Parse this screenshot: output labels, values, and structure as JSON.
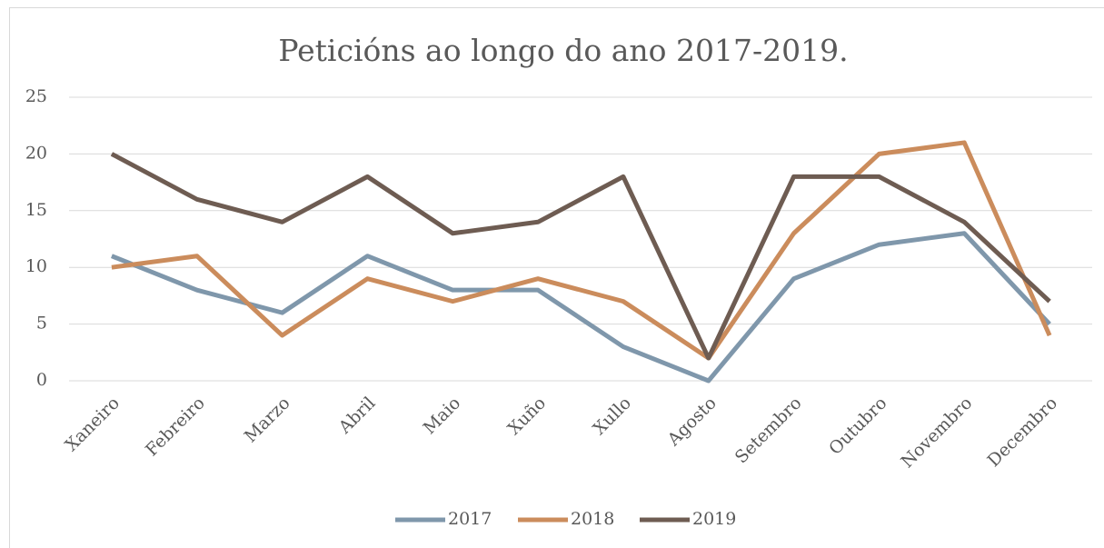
{
  "chart_data": {
    "type": "line",
    "title": "Peticións ao longo do ano 2017-2019.",
    "categories": [
      "Xaneiro",
      "Febreiro",
      "Marzo",
      "Abril",
      "Maio",
      "Xuño",
      "Xullo",
      "Agosto",
      "Setembro",
      "Outubro",
      "Novembro",
      "Decembro"
    ],
    "series": [
      {
        "name": "2017",
        "color": "#7f97ab",
        "values": [
          11,
          8,
          6,
          11,
          8,
          8,
          3,
          0,
          9,
          12,
          13,
          5
        ]
      },
      {
        "name": "2018",
        "color": "#cb8c5c",
        "values": [
          10,
          11,
          4,
          9,
          7,
          9,
          7,
          2,
          13,
          20,
          21,
          4
        ]
      },
      {
        "name": "2019",
        "color": "#6e5c52",
        "values": [
          20,
          16,
          14,
          18,
          13,
          14,
          18,
          2,
          18,
          18,
          14,
          7
        ]
      }
    ],
    "ylim": [
      0,
      25
    ],
    "yticks": [
      0,
      5,
      10,
      15,
      20,
      25
    ],
    "grid": true,
    "legend": "bottom"
  }
}
